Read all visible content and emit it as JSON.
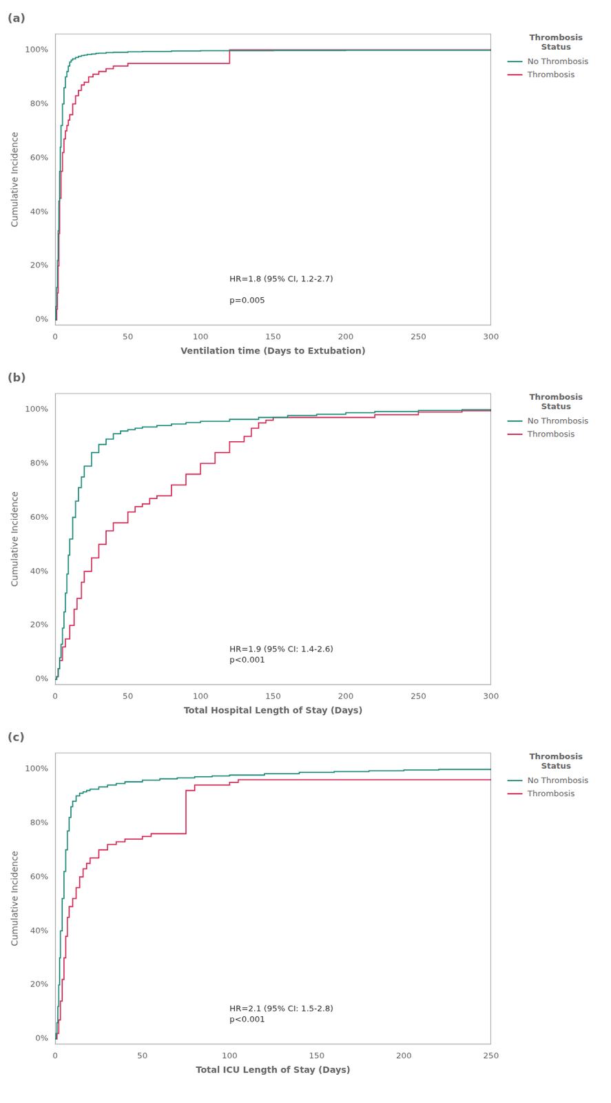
{
  "chart_data": [
    {
      "type": "step",
      "title": "(a)",
      "x_label": "Ventilation time (Days to Extubation)",
      "y_label": "Cumulative Incidence",
      "annotation": "HR=1.8 (95% CI, 1.2-2.7)\n\np=0.005",
      "xlim": [
        0,
        300
      ],
      "xticks": [
        0,
        50,
        100,
        150,
        200,
        250,
        300
      ],
      "ylim": [
        -0.02,
        1.06
      ],
      "yticks": [
        {
          "value": 0,
          "label": "0%"
        },
        {
          "value": 0.2,
          "label": "20%"
        },
        {
          "value": 0.4,
          "label": "40%"
        },
        {
          "value": 0.6,
          "label": "60%"
        },
        {
          "value": 0.8,
          "label": "80%"
        },
        {
          "value": 1.0,
          "label": "100%"
        }
      ],
      "grid": false,
      "legend": "right",
      "legend_title": "Thrombosis\nStatus",
      "series": [
        {
          "name": "No Thrombosis",
          "color": "#1F8A7A",
          "x": [
            0,
            0.5,
            1,
            1.5,
            2,
            2.5,
            3,
            3.5,
            4,
            5,
            6,
            7,
            8,
            9,
            10,
            11,
            12,
            14,
            16,
            18,
            20,
            22,
            25,
            28,
            30,
            35,
            40,
            50,
            60,
            80,
            100,
            150,
            200,
            260,
            300
          ],
          "values": [
            0,
            0.05,
            0.12,
            0.22,
            0.33,
            0.44,
            0.55,
            0.64,
            0.72,
            0.8,
            0.86,
            0.9,
            0.92,
            0.94,
            0.955,
            0.962,
            0.967,
            0.972,
            0.976,
            0.979,
            0.981,
            0.983,
            0.985,
            0.987,
            0.988,
            0.99,
            0.991,
            0.993,
            0.994,
            0.996,
            0.997,
            0.998,
            0.999,
            0.999,
            1.0
          ]
        },
        {
          "name": "Thrombosis",
          "color": "#D42B55",
          "x": [
            0,
            1,
            1.5,
            2,
            2.5,
            3,
            4,
            5,
            6,
            7,
            8,
            9,
            10,
            12,
            14,
            16,
            18,
            20,
            23,
            26,
            30,
            35,
            40,
            50,
            60,
            70,
            80,
            115,
            120,
            300
          ],
          "values": [
            0,
            0.04,
            0.1,
            0.2,
            0.32,
            0.45,
            0.55,
            0.62,
            0.67,
            0.7,
            0.72,
            0.74,
            0.76,
            0.8,
            0.83,
            0.85,
            0.87,
            0.88,
            0.9,
            0.91,
            0.92,
            0.93,
            0.94,
            0.95,
            0.95,
            0.95,
            0.95,
            0.95,
            1.0,
            1.0
          ]
        }
      ]
    },
    {
      "type": "step",
      "title": "(b)",
      "x_label": "Total Hospital Length of Stay (Days)",
      "y_label": "Cumulative Incidence",
      "annotation": "HR=1.9 (95% CI: 1.4-2.6)\np<0.001",
      "xlim": [
        0,
        300
      ],
      "xticks": [
        0,
        50,
        100,
        150,
        200,
        250,
        300
      ],
      "ylim": [
        -0.02,
        1.06
      ],
      "yticks": [
        {
          "value": 0,
          "label": "0%"
        },
        {
          "value": 0.2,
          "label": "20%"
        },
        {
          "value": 0.4,
          "label": "40%"
        },
        {
          "value": 0.6,
          "label": "60%"
        },
        {
          "value": 0.8,
          "label": "80%"
        },
        {
          "value": 1.0,
          "label": "100%"
        }
      ],
      "grid": false,
      "legend": "right",
      "legend_title": "Thrombosis\nStatus",
      "series": [
        {
          "name": "No Thrombosis",
          "color": "#1F8A7A",
          "x": [
            0,
            1,
            2,
            3,
            4,
            5,
            6,
            7,
            8,
            9,
            10,
            12,
            14,
            16,
            18,
            20,
            25,
            30,
            35,
            40,
            45,
            50,
            55,
            60,
            70,
            80,
            90,
            100,
            120,
            140,
            160,
            180,
            200,
            220,
            250,
            280,
            300
          ],
          "values": [
            0,
            0.01,
            0.04,
            0.08,
            0.13,
            0.19,
            0.25,
            0.32,
            0.39,
            0.46,
            0.52,
            0.6,
            0.66,
            0.71,
            0.75,
            0.79,
            0.84,
            0.87,
            0.89,
            0.91,
            0.92,
            0.925,
            0.93,
            0.935,
            0.94,
            0.946,
            0.951,
            0.956,
            0.963,
            0.97,
            0.977,
            0.982,
            0.988,
            0.992,
            0.996,
            0.999,
            1.0
          ]
        },
        {
          "name": "Thrombosis",
          "color": "#D42B55",
          "x": [
            0,
            1,
            2,
            3,
            5,
            7,
            10,
            13,
            15,
            18,
            20,
            25,
            30,
            35,
            40,
            50,
            55,
            60,
            65,
            70,
            80,
            90,
            100,
            110,
            120,
            130,
            135,
            140,
            145,
            150,
            160,
            180,
            200,
            220,
            250,
            280,
            300
          ],
          "values": [
            0,
            0.01,
            0.04,
            0.07,
            0.12,
            0.15,
            0.2,
            0.26,
            0.3,
            0.36,
            0.4,
            0.45,
            0.5,
            0.55,
            0.58,
            0.62,
            0.64,
            0.65,
            0.67,
            0.68,
            0.72,
            0.76,
            0.8,
            0.84,
            0.88,
            0.9,
            0.93,
            0.95,
            0.96,
            0.97,
            0.97,
            0.97,
            0.97,
            0.98,
            0.99,
            0.995,
            1.0
          ]
        }
      ]
    },
    {
      "type": "step",
      "title": "(c)",
      "x_label": "Total ICU Length of Stay (Days)",
      "y_label": "Cumulative Incidence",
      "annotation": "HR=2.1 (95% CI: 1.5-2.8)\np<0.001",
      "xlim": [
        0,
        250
      ],
      "xticks": [
        0,
        50,
        100,
        150,
        200,
        250
      ],
      "ylim": [
        -0.02,
        1.06
      ],
      "yticks": [
        {
          "value": 0,
          "label": "0%"
        },
        {
          "value": 0.2,
          "label": "20%"
        },
        {
          "value": 0.4,
          "label": "40%"
        },
        {
          "value": 0.6,
          "label": "60%"
        },
        {
          "value": 0.8,
          "label": "80%"
        },
        {
          "value": 1.0,
          "label": "100%"
        }
      ],
      "grid": false,
      "legend": "right",
      "legend_title": "Thrombosis\nStatus",
      "series": [
        {
          "name": "No Thrombosis",
          "color": "#1F8A7A",
          "x": [
            0,
            0.5,
            1,
            1.5,
            2,
            2.5,
            3,
            4,
            5,
            6,
            7,
            8,
            9,
            10,
            12,
            14,
            16,
            18,
            20,
            25,
            30,
            35,
            40,
            50,
            60,
            70,
            80,
            90,
            100,
            120,
            140,
            160,
            180,
            200,
            220,
            250
          ],
          "values": [
            0,
            0.02,
            0.06,
            0.12,
            0.2,
            0.3,
            0.4,
            0.52,
            0.62,
            0.7,
            0.77,
            0.82,
            0.86,
            0.88,
            0.9,
            0.91,
            0.915,
            0.92,
            0.925,
            0.933,
            0.94,
            0.946,
            0.952,
            0.958,
            0.963,
            0.967,
            0.971,
            0.974,
            0.977,
            0.982,
            0.987,
            0.99,
            0.993,
            0.996,
            0.998,
            1.0
          ]
        },
        {
          "name": "Thrombosis",
          "color": "#D42B55",
          "x": [
            0,
            1,
            2,
            3,
            4,
            5,
            6,
            7,
            8,
            10,
            12,
            14,
            16,
            18,
            20,
            25,
            30,
            35,
            40,
            50,
            55,
            60,
            65,
            70,
            75,
            80,
            90,
            95,
            100,
            105,
            110,
            120,
            150,
            180,
            250
          ],
          "values": [
            0,
            0.02,
            0.07,
            0.14,
            0.22,
            0.3,
            0.38,
            0.45,
            0.49,
            0.52,
            0.56,
            0.6,
            0.63,
            0.65,
            0.67,
            0.7,
            0.72,
            0.73,
            0.74,
            0.75,
            0.76,
            0.76,
            0.76,
            0.76,
            0.92,
            0.94,
            0.94,
            0.94,
            0.95,
            0.96,
            0.96,
            0.96,
            0.96,
            0.96,
            0.96
          ]
        }
      ]
    }
  ]
}
